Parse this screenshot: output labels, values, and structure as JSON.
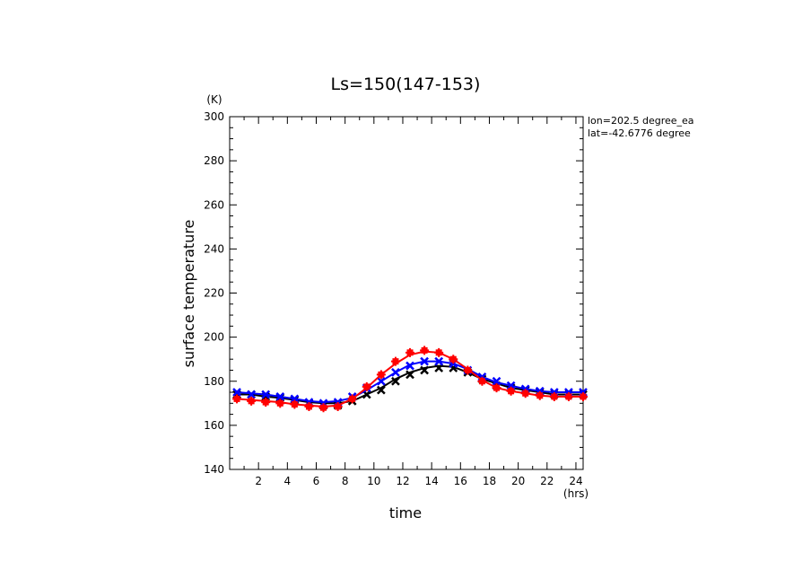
{
  "chart_data": {
    "type": "line",
    "title": "Ls=150(147-153)",
    "xlabel": "time",
    "xunit": "(hrs)",
    "ylabel": "surface temperature",
    "yunit": "(K)",
    "xlim": [
      0,
      24.5
    ],
    "ylim": [
      140,
      300
    ],
    "xticks": [
      2,
      4,
      6,
      8,
      10,
      12,
      14,
      16,
      18,
      20,
      22,
      24
    ],
    "yticks": [
      140,
      160,
      180,
      200,
      220,
      240,
      260,
      280,
      300
    ],
    "annotations": [
      "lon=202.5 degree_ea",
      "lat=-42.6776 degree"
    ],
    "x": [
      0.5,
      1.5,
      2.5,
      3.5,
      4.5,
      5.5,
      6.5,
      7.5,
      8.5,
      9.5,
      10.5,
      11.5,
      12.5,
      13.5,
      14.5,
      15.5,
      16.5,
      17.5,
      18.5,
      19.5,
      20.5,
      21.5,
      22.5,
      23.5,
      24.5
    ],
    "series": [
      {
        "color": "#000000",
        "marker": "x",
        "line": [
          174,
          174,
          173,
          172.5,
          171.5,
          170.5,
          170,
          170,
          171,
          174,
          177,
          181,
          184,
          186,
          187,
          186.5,
          184,
          181,
          179,
          177,
          176,
          175,
          174,
          174,
          174
        ],
        "points": [
          174,
          174,
          173,
          172.5,
          171.5,
          170,
          169,
          169,
          171,
          174,
          176,
          180,
          183,
          185,
          186,
          186,
          184,
          181,
          178,
          177,
          176,
          175,
          174,
          174,
          174
        ]
      },
      {
        "color": "#0000ff",
        "marker": "x",
        "line": [
          175,
          174.5,
          174,
          173,
          172,
          171,
          170.5,
          171,
          172.5,
          176,
          180,
          184,
          187.5,
          189,
          189,
          188,
          185.5,
          182,
          179.5,
          178,
          176.5,
          175.5,
          175,
          175,
          175
        ],
        "points": [
          175,
          174,
          174,
          173,
          172,
          170.5,
          170,
          170.5,
          173,
          177,
          180,
          184,
          187,
          189,
          189,
          188,
          185,
          182,
          180,
          178,
          176.5,
          175.5,
          175,
          175,
          175
        ]
      },
      {
        "color": "#ff0000",
        "marker": "plus-square",
        "line": [
          172,
          171.5,
          171,
          170.5,
          169.5,
          169,
          168.5,
          169,
          172,
          177,
          183,
          188,
          192,
          193.5,
          193,
          190,
          185.5,
          180.5,
          177,
          175.5,
          174.5,
          173.5,
          173,
          173,
          173
        ],
        "points": [
          172,
          171,
          170.5,
          170,
          169.5,
          168.5,
          168,
          168.5,
          172,
          177.5,
          183,
          189,
          193,
          194,
          193,
          190,
          185,
          180,
          177,
          175.5,
          174.5,
          173.5,
          173,
          173,
          173
        ]
      }
    ]
  }
}
